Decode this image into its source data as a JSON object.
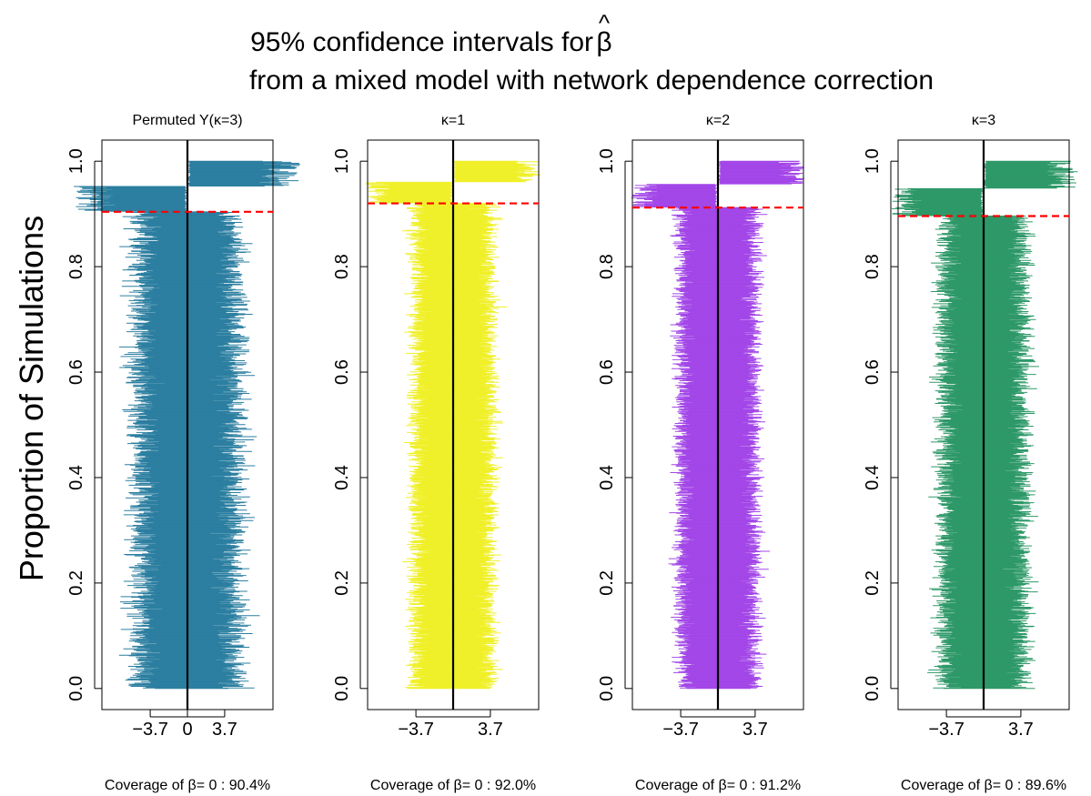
{
  "title": {
    "line1_prefix": "95% confidence intervals for ",
    "line1_symbol": "β",
    "line1_hat": "^",
    "line2": "from a mixed model with network dependence correction"
  },
  "ylabel": "Proportion of Simulations",
  "chart_data": [
    {
      "type": "interval",
      "subtitle": "Permuted Y(κ=3)",
      "color": "#2C7FA0",
      "coverage_label": "Coverage of β= 0 : 90.4%",
      "coverage": 0.904,
      "reference_x": 0,
      "xticks": [
        -3.7,
        0,
        3.7
      ],
      "xtick_labels": [
        "−3.7",
        "0",
        "3.7"
      ],
      "yticks": [
        0.0,
        0.2,
        0.4,
        0.6,
        0.8,
        1.0
      ],
      "ytick_labels": [
        "0.0",
        "0.2",
        "0.4",
        "0.6",
        "0.8",
        "1.0"
      ],
      "xlim": [
        -8.5,
        8.5
      ],
      "ylim": [
        -0.04,
        1.04
      ],
      "n_intervals": 1000,
      "half_width_range": [
        3.5,
        5.6
      ],
      "estimate_sd": 0.6
    },
    {
      "type": "interval",
      "subtitle": "κ=1",
      "color": "#F0F02A",
      "coverage_label": "Coverage of β= 0 : 92.0%",
      "coverage": 0.92,
      "reference_x": 0,
      "xticks": [
        -3.7,
        3.7
      ],
      "xtick_labels": [
        "−3.7",
        "3.7"
      ],
      "yticks": [
        0.0,
        0.2,
        0.4,
        0.6,
        0.8,
        1.0
      ],
      "ytick_labels": [
        "0.0",
        "0.2",
        "0.4",
        "0.6",
        "0.8",
        "1.0"
      ],
      "xlim": [
        -8.5,
        8.5
      ],
      "ylim": [
        -0.04,
        1.04
      ],
      "n_intervals": 1000,
      "half_width_range": [
        3.0,
        4.3
      ],
      "estimate_sd": 0.35
    },
    {
      "type": "interval",
      "subtitle": "κ=2",
      "color": "#A347E8",
      "coverage_label": "Coverage of β= 0 : 91.2%",
      "coverage": 0.912,
      "reference_x": 0,
      "xticks": [
        -3.7,
        3.7
      ],
      "xtick_labels": [
        "−3.7",
        "3.7"
      ],
      "yticks": [
        0.0,
        0.2,
        0.4,
        0.6,
        0.8,
        1.0
      ],
      "ytick_labels": [
        "0.0",
        "0.2",
        "0.4",
        "0.6",
        "0.8",
        "1.0"
      ],
      "xlim": [
        -8.5,
        8.5
      ],
      "ylim": [
        -0.04,
        1.04
      ],
      "n_intervals": 1000,
      "half_width_range": [
        2.9,
        4.2
      ],
      "estimate_sd": 0.35
    },
    {
      "type": "interval",
      "subtitle": "κ=3",
      "color": "#2E9968",
      "coverage_label": "Coverage of β= 0 : 89.6%",
      "coverage": 0.896,
      "reference_x": 0,
      "xticks": [
        -3.7,
        3.7
      ],
      "xtick_labels": [
        "−3.7",
        "3.7"
      ],
      "yticks": [
        0.0,
        0.2,
        0.4,
        0.6,
        0.8,
        1.0
      ],
      "ytick_labels": [
        "0.0",
        "0.2",
        "0.4",
        "0.6",
        "0.8",
        "1.0"
      ],
      "xlim": [
        -8.5,
        8.5
      ],
      "ylim": [
        -0.04,
        1.04
      ],
      "n_intervals": 1000,
      "half_width_range": [
        3.0,
        4.6
      ],
      "estimate_sd": 0.45
    }
  ]
}
